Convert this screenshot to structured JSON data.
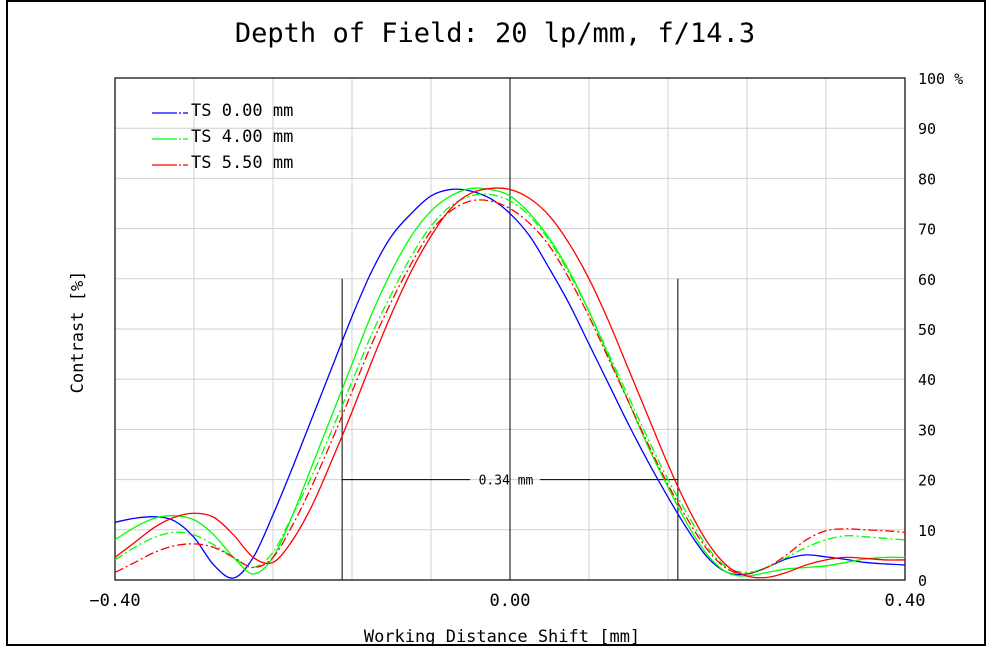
{
  "chart_data": {
    "type": "line",
    "title": "Depth of Field: 20 lp/mm, f/14.3",
    "xlabel": "Working Distance Shift [mm]",
    "ylabel": "Contrast [%]",
    "xlim": [
      -0.4,
      0.4
    ],
    "ylim": [
      0,
      100
    ],
    "x_tick_labels": [
      "−0.40",
      "0.00",
      "0.40"
    ],
    "y_tick_labels": [
      "0",
      "10",
      "20",
      "30",
      "40",
      "50",
      "60",
      "70",
      "80",
      "90",
      "100 %"
    ],
    "grid": true,
    "legend_position": "top-left",
    "legend": [
      "TS  0.00  mm",
      "TS  4.00  mm",
      "TS  5.50  mm"
    ],
    "annotation": {
      "text": "0.34 mm",
      "x_from": -0.17,
      "x_to": 0.17,
      "y": 20,
      "marker_top": 60
    },
    "series": [
      {
        "name": "TS  0.00  mm",
        "color": "#0000ff",
        "style": "solid",
        "x": [
          -0.4,
          -0.38,
          -0.36,
          -0.34,
          -0.32,
          -0.3,
          -0.28,
          -0.26,
          -0.24,
          -0.22,
          -0.2,
          -0.18,
          -0.16,
          -0.14,
          -0.12,
          -0.1,
          -0.08,
          -0.06,
          -0.04,
          -0.02,
          0.0,
          0.02,
          0.04,
          0.06,
          0.08,
          0.1,
          0.12,
          0.14,
          0.16,
          0.18,
          0.2,
          0.22,
          0.24,
          0.26,
          0.28,
          0.3,
          0.32,
          0.34,
          0.36,
          0.38,
          0.4
        ],
        "y": [
          11.5,
          12.3,
          12.6,
          11.8,
          8.5,
          3.0,
          0.4,
          4.5,
          13,
          22.5,
          32.5,
          42.5,
          52.5,
          61.5,
          68.5,
          73,
          76.5,
          77.8,
          77.5,
          76,
          73,
          68.5,
          62,
          55,
          47,
          39,
          31,
          23.5,
          16.5,
          10,
          4.5,
          1.5,
          1.2,
          2.5,
          4.2,
          5,
          4.6,
          4.1,
          3.5,
          3.2,
          3.0
        ]
      },
      {
        "name": "TS  4.00  mm",
        "color": "#00ff00",
        "style": "solid",
        "x": [
          -0.4,
          -0.38,
          -0.36,
          -0.34,
          -0.32,
          -0.3,
          -0.28,
          -0.26,
          -0.24,
          -0.22,
          -0.2,
          -0.18,
          -0.16,
          -0.14,
          -0.12,
          -0.1,
          -0.08,
          -0.06,
          -0.04,
          -0.02,
          0.0,
          0.02,
          0.04,
          0.06,
          0.08,
          0.1,
          0.12,
          0.14,
          0.16,
          0.18,
          0.2,
          0.22,
          0.24,
          0.26,
          0.28,
          0.3,
          0.32,
          0.34,
          0.36,
          0.38,
          0.4
        ],
        "y": [
          8,
          10.5,
          12.3,
          12.8,
          12,
          9,
          4.5,
          1.2,
          4.5,
          13,
          23,
          33,
          43,
          53,
          61.5,
          68.5,
          73.5,
          76.5,
          78,
          77.8,
          76.5,
          73,
          68,
          61.5,
          53.5,
          44.5,
          35.5,
          26.5,
          18.5,
          11,
          5,
          1.5,
          0.8,
          1.5,
          2.2,
          2.5,
          2.8,
          3.5,
          4.2,
          4.5,
          4.5
        ]
      },
      {
        "name": "TS  4.00  mm (T)",
        "color": "#00ff00",
        "style": "dash",
        "x": [
          -0.4,
          -0.38,
          -0.36,
          -0.34,
          -0.32,
          -0.3,
          -0.28,
          -0.26,
          -0.24,
          -0.22,
          -0.2,
          -0.18,
          -0.16,
          -0.14,
          -0.12,
          -0.1,
          -0.08,
          -0.06,
          -0.04,
          -0.02,
          0.0,
          0.02,
          0.04,
          0.06,
          0.08,
          0.1,
          0.12,
          0.14,
          0.16,
          0.18,
          0.2,
          0.22,
          0.24,
          0.26,
          0.28,
          0.3,
          0.32,
          0.34,
          0.36,
          0.38,
          0.4
        ],
        "y": [
          4,
          6.5,
          8.5,
          9.5,
          9,
          7,
          4.5,
          2.5,
          5.5,
          13,
          21,
          30,
          39.5,
          49,
          57,
          64.5,
          70.5,
          74.5,
          76.5,
          76.8,
          75.5,
          72.5,
          67.5,
          61,
          53.5,
          45,
          36.5,
          28,
          20,
          13,
          6.5,
          2.5,
          1.5,
          2.5,
          4.5,
          6.5,
          8,
          8.8,
          8.6,
          8.3,
          8
        ]
      },
      {
        "name": "TS  5.50  mm",
        "color": "#ff0000",
        "style": "solid",
        "x": [
          -0.4,
          -0.38,
          -0.36,
          -0.34,
          -0.32,
          -0.3,
          -0.28,
          -0.26,
          -0.24,
          -0.22,
          -0.2,
          -0.18,
          -0.16,
          -0.14,
          -0.12,
          -0.1,
          -0.08,
          -0.06,
          -0.04,
          -0.02,
          0.0,
          0.02,
          0.04,
          0.06,
          0.08,
          0.1,
          0.12,
          0.14,
          0.16,
          0.18,
          0.2,
          0.22,
          0.24,
          0.26,
          0.28,
          0.3,
          0.32,
          0.34,
          0.36,
          0.38,
          0.4
        ],
        "y": [
          4.5,
          7.5,
          10.5,
          12.5,
          13.3,
          12.5,
          9,
          4.5,
          3.5,
          8,
          15,
          24,
          33.5,
          43.5,
          53,
          61.5,
          68.5,
          74,
          77,
          78,
          77.8,
          76,
          72.5,
          67,
          60,
          51.5,
          42,
          32.5,
          23,
          14.5,
          7.5,
          2.8,
          0.8,
          0.5,
          1.5,
          3,
          4,
          4.5,
          4.3,
          4,
          4
        ]
      },
      {
        "name": "TS  5.50  mm (T)",
        "color": "#ff0000",
        "style": "dash",
        "x": [
          -0.4,
          -0.38,
          -0.36,
          -0.34,
          -0.32,
          -0.3,
          -0.28,
          -0.26,
          -0.24,
          -0.22,
          -0.2,
          -0.18,
          -0.16,
          -0.14,
          -0.12,
          -0.1,
          -0.08,
          -0.06,
          -0.04,
          -0.02,
          0.0,
          0.02,
          0.04,
          0.06,
          0.08,
          0.1,
          0.12,
          0.14,
          0.16,
          0.18,
          0.2,
          0.22,
          0.24,
          0.26,
          0.28,
          0.3,
          0.32,
          0.34,
          0.36,
          0.38,
          0.4
        ],
        "y": [
          1.5,
          3.5,
          5.5,
          6.8,
          7.2,
          6.5,
          4.5,
          2.5,
          4.5,
          11,
          19,
          28,
          37.5,
          47,
          55.5,
          63,
          69.5,
          73.5,
          75.5,
          75.5,
          74,
          71,
          66.5,
          60,
          52.5,
          44,
          35.5,
          27,
          19,
          12,
          6,
          2.2,
          1.2,
          2.5,
          5,
          8,
          9.8,
          10.2,
          10,
          9.8,
          9.5
        ]
      }
    ]
  }
}
